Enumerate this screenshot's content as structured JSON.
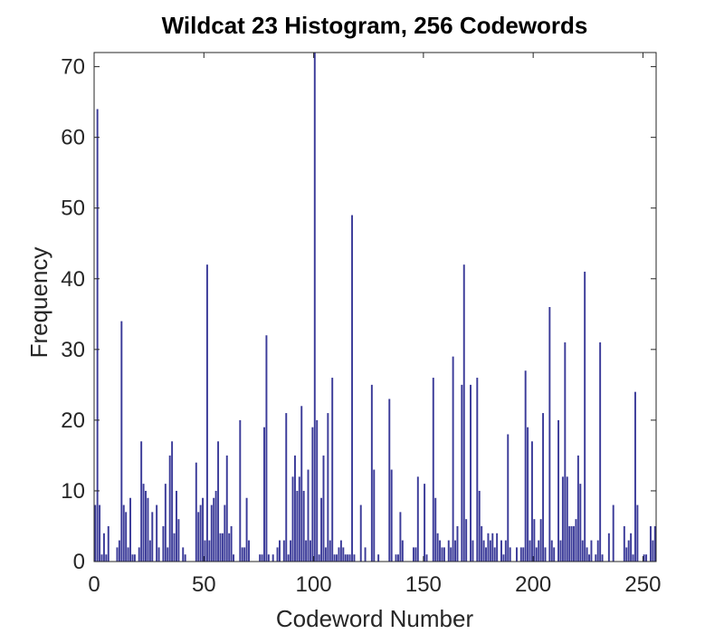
{
  "chart_data": {
    "type": "bar",
    "title": "Wildcat 23 Histogram, 256 Codewords",
    "xlabel": "Codeword Number",
    "ylabel": "Frequency",
    "xlim": [
      0,
      256
    ],
    "ylim": [
      0,
      72
    ],
    "xticks": [
      0,
      50,
      100,
      150,
      200,
      250
    ],
    "yticks": [
      0,
      10,
      20,
      30,
      40,
      50,
      60,
      70
    ],
    "grid": false,
    "box": true,
    "colors": {
      "bar": "#3b3b99",
      "axis": "#262626"
    },
    "x": [
      0,
      1,
      2,
      3,
      4,
      5,
      6,
      7,
      8,
      9,
      10,
      11,
      12,
      13,
      14,
      15,
      16,
      17,
      18,
      19,
      20,
      21,
      22,
      23,
      24,
      25,
      26,
      27,
      28,
      29,
      30,
      31,
      32,
      33,
      34,
      35,
      36,
      37,
      38,
      39,
      40,
      41,
      42,
      43,
      44,
      45,
      46,
      47,
      48,
      49,
      50,
      51,
      52,
      53,
      54,
      55,
      56,
      57,
      58,
      59,
      60,
      61,
      62,
      63,
      64,
      65,
      66,
      67,
      68,
      69,
      70,
      71,
      72,
      73,
      74,
      75,
      76,
      77,
      78,
      79,
      80,
      81,
      82,
      83,
      84,
      85,
      86,
      87,
      88,
      89,
      90,
      91,
      92,
      93,
      94,
      95,
      96,
      97,
      98,
      99,
      100,
      101,
      102,
      103,
      104,
      105,
      106,
      107,
      108,
      109,
      110,
      111,
      112,
      113,
      114,
      115,
      116,
      117,
      118,
      119,
      120,
      121,
      122,
      123,
      124,
      125,
      126,
      127,
      128,
      129,
      130,
      131,
      132,
      133,
      134,
      135,
      136,
      137,
      138,
      139,
      140,
      141,
      142,
      143,
      144,
      145,
      146,
      147,
      148,
      149,
      150,
      151,
      152,
      153,
      154,
      155,
      156,
      157,
      158,
      159,
      160,
      161,
      162,
      163,
      164,
      165,
      166,
      167,
      168,
      169,
      170,
      171,
      172,
      173,
      174,
      175,
      176,
      177,
      178,
      179,
      180,
      181,
      182,
      183,
      184,
      185,
      186,
      187,
      188,
      189,
      190,
      191,
      192,
      193,
      194,
      195,
      196,
      197,
      198,
      199,
      200,
      201,
      202,
      203,
      204,
      205,
      206,
      207,
      208,
      209,
      210,
      211,
      212,
      213,
      214,
      215,
      216,
      217,
      218,
      219,
      220,
      221,
      222,
      223,
      224,
      225,
      226,
      227,
      228,
      229,
      230,
      231,
      232,
      233,
      234,
      235,
      236,
      237,
      238,
      239,
      240,
      241,
      242,
      243,
      244,
      245,
      246,
      247,
      248,
      249,
      250,
      251,
      252,
      253,
      254,
      255
    ],
    "values": [
      8,
      64,
      8,
      1,
      4,
      1,
      5,
      0,
      0,
      0,
      2,
      3,
      34,
      8,
      7,
      2,
      9,
      1,
      1,
      0,
      2,
      17,
      11,
      10,
      9,
      3,
      7,
      0,
      8,
      2,
      0,
      5,
      11,
      2,
      15,
      17,
      4,
      10,
      6,
      0,
      2,
      1,
      0,
      0,
      0,
      0,
      14,
      7,
      8,
      9,
      3,
      42,
      3,
      8,
      9,
      10,
      17,
      4,
      4,
      8,
      15,
      4,
      5,
      1,
      0,
      0,
      20,
      2,
      2,
      9,
      3,
      0,
      0,
      0,
      0,
      1,
      1,
      19,
      32,
      1,
      0,
      1,
      0,
      2,
      3,
      0,
      3,
      21,
      1,
      3,
      12,
      15,
      10,
      12,
      22,
      10,
      3,
      13,
      3,
      19,
      72,
      20,
      1,
      9,
      15,
      2,
      21,
      3,
      26,
      1,
      1,
      2,
      3,
      2,
      1,
      1,
      1,
      49,
      1,
      0,
      0,
      8,
      0,
      2,
      0,
      0,
      25,
      13,
      0,
      1,
      0,
      0,
      0,
      0,
      23,
      13,
      0,
      1,
      1,
      7,
      3,
      0,
      0,
      0,
      0,
      2,
      2,
      12,
      0,
      0,
      11,
      1,
      0,
      0,
      26,
      9,
      4,
      3,
      2,
      2,
      0,
      3,
      2,
      29,
      3,
      5,
      0,
      25,
      42,
      6,
      0,
      25,
      3,
      0,
      26,
      10,
      5,
      3,
      2,
      4,
      3,
      4,
      2,
      4,
      0,
      3,
      1,
      3,
      18,
      2,
      0,
      0,
      2,
      0,
      2,
      2,
      27,
      19,
      3,
      17,
      6,
      2,
      3,
      6,
      21,
      2,
      0,
      36,
      3,
      2,
      0,
      20,
      3,
      12,
      31,
      12,
      5,
      5,
      5,
      6,
      15,
      11,
      3,
      41,
      2,
      1,
      3,
      0,
      1,
      3,
      31,
      1,
      0,
      0,
      4,
      0,
      8,
      0,
      0,
      0,
      0,
      5,
      2,
      3,
      4,
      1,
      24,
      8,
      0,
      0,
      1,
      1,
      0,
      5,
      3,
      5
    ]
  }
}
